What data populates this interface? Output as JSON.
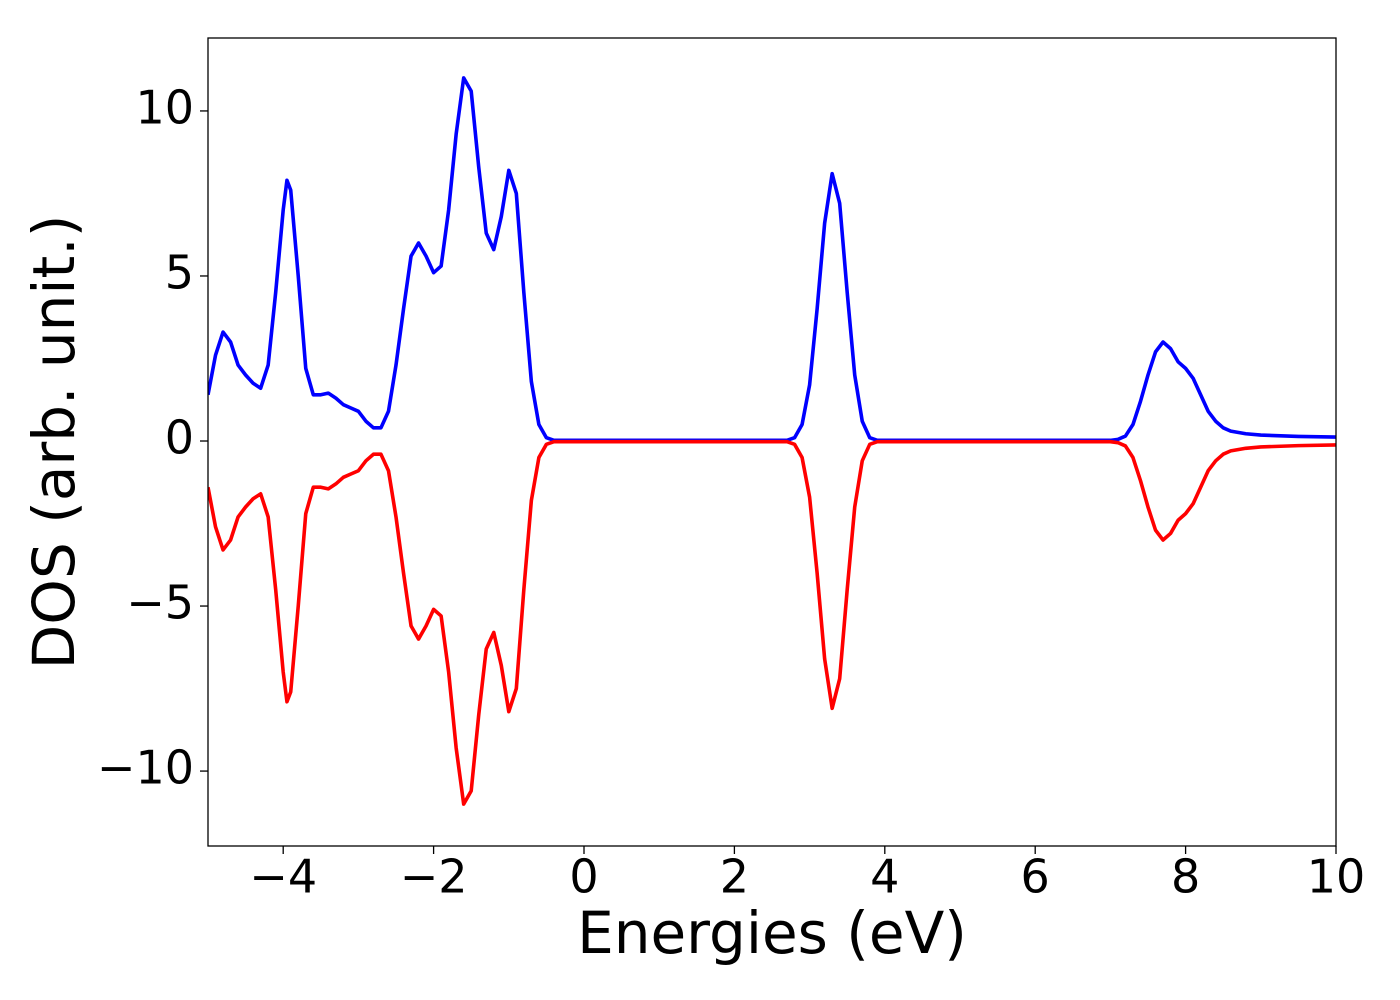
{
  "chart_data": {
    "type": "line",
    "xlabel": "Energies (eV)",
    "ylabel": "DOS (arb. unit.)",
    "x": [
      -5,
      -4.9,
      -4.8,
      -4.7,
      -4.6,
      -4.5,
      -4.4,
      -4.3,
      -4.2,
      -4.1,
      -4.0,
      -3.95,
      -3.9,
      -3.8,
      -3.7,
      -3.6,
      -3.5,
      -3.4,
      -3.3,
      -3.2,
      -3.1,
      -3.0,
      -2.9,
      -2.8,
      -2.7,
      -2.6,
      -2.5,
      -2.4,
      -2.3,
      -2.2,
      -2.1,
      -2.0,
      -1.9,
      -1.8,
      -1.7,
      -1.6,
      -1.5,
      -1.4,
      -1.3,
      -1.2,
      -1.1,
      -1.0,
      -0.9,
      -0.8,
      -0.7,
      -0.6,
      -0.5,
      -0.4,
      0,
      1,
      2,
      2.7,
      2.8,
      2.9,
      3.0,
      3.1,
      3.2,
      3.3,
      3.4,
      3.5,
      3.6,
      3.7,
      3.8,
      3.9,
      5,
      6,
      7,
      7.1,
      7.2,
      7.3,
      7.4,
      7.5,
      7.6,
      7.7,
      7.8,
      7.9,
      8.0,
      8.1,
      8.2,
      8.3,
      8.4,
      8.5,
      8.6,
      8.8,
      9.0,
      9.5,
      10
    ],
    "series": [
      {
        "color": "#0000ff",
        "values": [
          1.4,
          2.6,
          3.3,
          3.0,
          2.3,
          2.0,
          1.75,
          1.6,
          2.3,
          4.5,
          7.0,
          7.9,
          7.6,
          5.0,
          2.2,
          1.4,
          1.4,
          1.45,
          1.3,
          1.1,
          1.0,
          0.9,
          0.6,
          0.4,
          0.4,
          0.9,
          2.3,
          4.0,
          5.6,
          6.0,
          5.6,
          5.1,
          5.3,
          7.0,
          9.3,
          11.0,
          10.6,
          8.3,
          6.3,
          5.8,
          6.8,
          8.2,
          7.5,
          4.5,
          1.8,
          0.5,
          0.1,
          0.02,
          0.02,
          0.02,
          0.02,
          0.02,
          0.1,
          0.5,
          1.7,
          4.0,
          6.6,
          8.1,
          7.2,
          4.5,
          2.0,
          0.6,
          0.1,
          0.02,
          0.02,
          0.02,
          0.02,
          0.05,
          0.15,
          0.5,
          1.2,
          2.0,
          2.7,
          3.0,
          2.8,
          2.4,
          2.2,
          1.9,
          1.4,
          0.9,
          0.6,
          0.4,
          0.3,
          0.22,
          0.18,
          0.14,
          0.12
        ]
      },
      {
        "color": "#ff0000",
        "values": [
          -1.4,
          -2.6,
          -3.3,
          -3.0,
          -2.3,
          -2.0,
          -1.75,
          -1.6,
          -2.3,
          -4.5,
          -7.0,
          -7.9,
          -7.6,
          -5.0,
          -2.2,
          -1.4,
          -1.4,
          -1.45,
          -1.3,
          -1.1,
          -1.0,
          -0.9,
          -0.6,
          -0.4,
          -0.4,
          -0.9,
          -2.3,
          -4.0,
          -5.6,
          -6.0,
          -5.6,
          -5.1,
          -5.3,
          -7.0,
          -9.3,
          -11.0,
          -10.6,
          -8.3,
          -6.3,
          -5.8,
          -6.8,
          -8.2,
          -7.5,
          -4.5,
          -1.8,
          -0.5,
          -0.1,
          -0.02,
          -0.02,
          -0.02,
          -0.02,
          -0.02,
          -0.1,
          -0.5,
          -1.7,
          -4.0,
          -6.6,
          -8.1,
          -7.2,
          -4.5,
          -2.0,
          -0.6,
          -0.1,
          -0.02,
          -0.02,
          -0.02,
          -0.02,
          -0.05,
          -0.15,
          -0.5,
          -1.2,
          -2.0,
          -2.7,
          -3.0,
          -2.8,
          -2.4,
          -2.2,
          -1.9,
          -1.4,
          -0.9,
          -0.6,
          -0.4,
          -0.3,
          -0.22,
          -0.18,
          -0.14,
          -0.12
        ]
      }
    ],
    "xlim": [
      -5,
      10
    ],
    "xticks": [
      {
        "value": -4,
        "label": "−4"
      },
      {
        "value": -2,
        "label": "−2"
      },
      0,
      2,
      4,
      6,
      8,
      10
    ],
    "ylim": [
      -12.27,
      12.21
    ],
    "yticks": [
      {
        "value": -10,
        "label": "−10"
      },
      {
        "value": -5,
        "label": "−5"
      },
      0,
      5,
      10
    ],
    "grid": false
  }
}
